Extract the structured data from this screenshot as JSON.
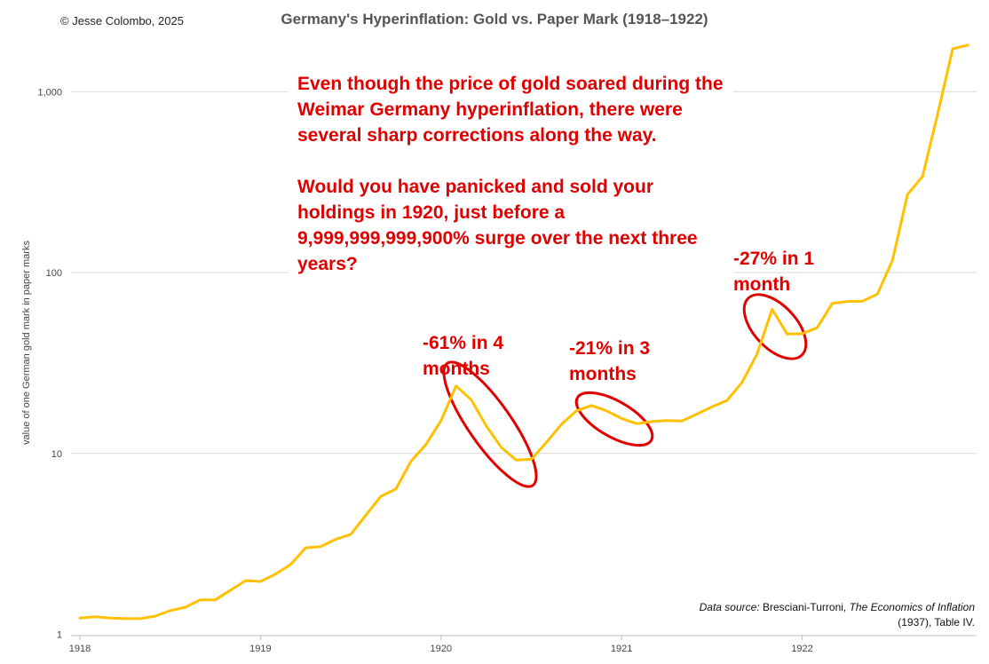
{
  "copyright": "© Jesse Colombo, 2025",
  "title": "Germany's Hyperinflation: Gold vs. Paper Mark (1918–1922)",
  "callout": {
    "paragraph1": "Even though the price of gold soared during the Weimar Germany hyperinflation, there were several sharp corrections along the way.",
    "paragraph2": "Would you have panicked and sold your holdings in 1920, just before a 9,999,999,999,900% surge over the next three years?"
  },
  "annotations": [
    {
      "line1": "-61% in 4",
      "line2": "months"
    },
    {
      "line1": "-21% in 3",
      "line2": "months"
    },
    {
      "line1": "-27% in 1",
      "line2": "month"
    }
  ],
  "source": {
    "label": "Data source:",
    "author": " Bresciani-Turroni, ",
    "book": "The Economics of Inflation",
    "rest": " (1937), Table IV."
  },
  "colors": {
    "line": "#ffc000",
    "annotation": "#e00000",
    "grid": "#d9d9d9"
  },
  "chart_data": {
    "type": "line",
    "title": "Germany's Hyperinflation: Gold vs. Paper Mark (1918–1922)",
    "xlabel": "",
    "ylabel": "value of one German gold mark in paper marks",
    "yscale": "log",
    "ylim": [
      1,
      1900
    ],
    "yticks": [
      1,
      10,
      100,
      1000
    ],
    "ytick_labels": [
      "1",
      "10",
      "100",
      "1,000"
    ],
    "xlim": [
      0,
      59
    ],
    "xticks": [
      0,
      12,
      24,
      36,
      48
    ],
    "xtick_labels": [
      "1918",
      "1919",
      "1920",
      "1921",
      "1922"
    ],
    "grid": true,
    "series": [
      {
        "name": "Gold mark in paper marks",
        "x": [
          0,
          1,
          2,
          3,
          4,
          5,
          6,
          7,
          8,
          9,
          10,
          11,
          12,
          13,
          14,
          15,
          16,
          17,
          18,
          19,
          20,
          21,
          22,
          23,
          24,
          25,
          26,
          27,
          28,
          29,
          30,
          31,
          32,
          33,
          34,
          35,
          36,
          37,
          38,
          39,
          40,
          41,
          42,
          43,
          44,
          45,
          46,
          47,
          48,
          49,
          50,
          51,
          52,
          53,
          54,
          55,
          56,
          57,
          58,
          59
        ],
        "values": [
          1.23,
          1.25,
          1.23,
          1.22,
          1.22,
          1.26,
          1.35,
          1.41,
          1.55,
          1.55,
          1.75,
          1.98,
          1.96,
          2.15,
          2.43,
          3.0,
          3.05,
          3.35,
          3.57,
          4.55,
          5.79,
          6.35,
          9.05,
          11.2,
          15.2,
          23.6,
          19.8,
          14.2,
          10.8,
          9.18,
          9.28,
          11.5,
          14.5,
          17.2,
          18.4,
          17.2,
          15.6,
          14.6,
          15.0,
          15.2,
          15.1,
          16.5,
          18.1,
          19.6,
          24.7,
          35.4,
          62.6,
          45.7,
          45.9,
          49.5,
          67.6,
          69.2,
          69.4,
          76.0,
          117,
          270,
          340,
          750,
          1725,
          1810
        ]
      }
    ]
  }
}
